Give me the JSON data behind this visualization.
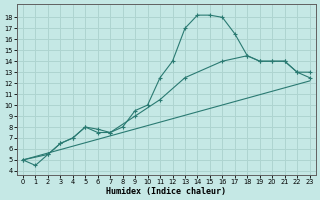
{
  "background_color": "#c5e8e5",
  "grid_color": "#aed4d0",
  "line_color": "#2a7a72",
  "xlabel": "Humidex (Indice chaleur)",
  "xlim_min": -0.5,
  "xlim_max": 23.5,
  "ylim_min": 3.6,
  "ylim_max": 19.2,
  "xticks": [
    0,
    1,
    2,
    3,
    4,
    5,
    6,
    7,
    8,
    9,
    10,
    11,
    12,
    13,
    14,
    15,
    16,
    17,
    18,
    19,
    20,
    21,
    22,
    23
  ],
  "yticks": [
    4,
    5,
    6,
    7,
    8,
    9,
    10,
    11,
    12,
    13,
    14,
    15,
    16,
    17,
    18
  ],
  "curve_x": [
    0,
    1,
    2,
    3,
    4,
    5,
    6,
    7,
    8,
    9,
    10,
    11,
    12,
    13,
    14,
    15,
    16,
    17,
    18,
    19,
    20,
    21,
    22,
    23
  ],
  "curve_y": [
    5.0,
    4.5,
    5.5,
    6.5,
    7.0,
    8.0,
    7.5,
    7.5,
    8.0,
    9.5,
    10.0,
    12.5,
    14.0,
    17.0,
    18.2,
    18.2,
    18.0,
    16.5,
    14.5,
    14.0,
    14.0,
    14.0,
    13.0,
    12.5
  ],
  "line2_x": [
    0,
    2,
    3,
    4,
    5,
    6,
    7,
    9,
    11,
    13,
    16,
    18,
    19,
    20,
    21,
    22,
    23
  ],
  "line2_y": [
    5.0,
    5.5,
    6.5,
    7.0,
    8.0,
    7.8,
    7.5,
    9.0,
    10.5,
    12.5,
    14.0,
    14.5,
    14.0,
    14.0,
    14.0,
    13.0,
    13.0
  ],
  "line3_x": [
    0,
    23
  ],
  "line3_y": [
    5.0,
    12.2
  ]
}
